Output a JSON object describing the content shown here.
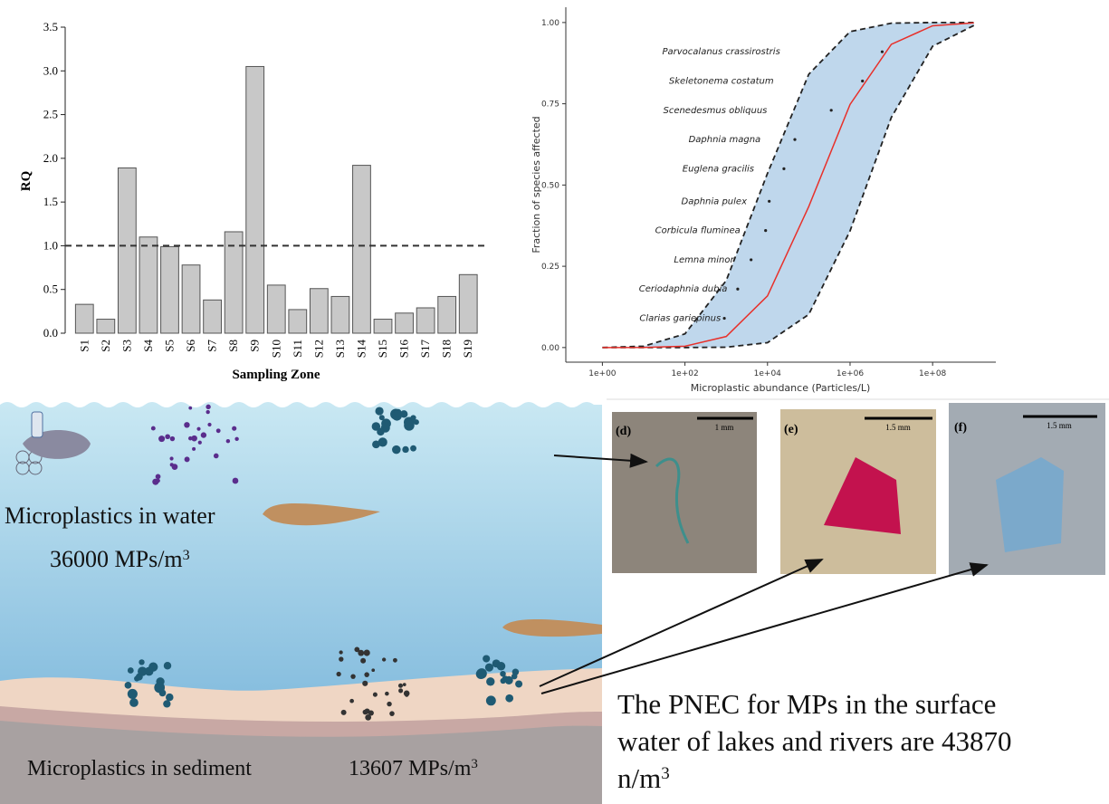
{
  "chart_data": [
    {
      "type": "bar",
      "ylabel": "RQ",
      "xlabel": "Sampling Zone",
      "categories": [
        "S1",
        "S2",
        "S3",
        "S4",
        "S5",
        "S6",
        "S7",
        "S8",
        "S9",
        "S10",
        "S11",
        "S12",
        "S13",
        "S14",
        "S15",
        "S16",
        "S17",
        "S18",
        "S19"
      ],
      "values": [
        0.33,
        0.16,
        1.89,
        1.1,
        0.99,
        0.78,
        0.38,
        1.16,
        3.05,
        0.55,
        0.27,
        0.51,
        0.42,
        1.92,
        0.16,
        0.23,
        0.29,
        0.42,
        0.67
      ],
      "color": "#c8c8c8",
      "reference_line": 1,
      "ylim": [
        0,
        3.5
      ],
      "yticks": [
        {
          "value": 0,
          "label": "0.0"
        },
        {
          "value": 0.5,
          "label": "0.5"
        },
        {
          "value": 1,
          "label": "1.0"
        },
        {
          "value": 1.5,
          "label": "1.5"
        },
        {
          "value": 2,
          "label": "2.0"
        },
        {
          "value": 2.5,
          "label": "2.5"
        },
        {
          "value": 3,
          "label": "3.0"
        },
        {
          "value": 3.5,
          "label": "3.5"
        }
      ]
    },
    {
      "type": "line",
      "xlabel": "Microplastic abundance (Particles/L)",
      "ylabel": "Fraction of species affected",
      "log_x": true,
      "xlim": [
        0.13,
        3400000000
      ],
      "ylim": [
        -0.045,
        1.047
      ],
      "xticks": [
        {
          "value": 1,
          "label": "1e+00"
        },
        {
          "value": 100,
          "label": "1e+02"
        },
        {
          "value": 10000,
          "label": "1e+04"
        },
        {
          "value": 1000000,
          "label": "1e+06"
        },
        {
          "value": 100000000,
          "label": "1e+08"
        }
      ],
      "yticks": [
        {
          "value": 0,
          "label": "0.00"
        },
        {
          "value": 0.25,
          "label": "0.25"
        },
        {
          "value": 0.5,
          "label": "0.50"
        },
        {
          "value": 0.75,
          "label": "0.75"
        },
        {
          "value": 1,
          "label": "1.00"
        }
      ],
      "x": [
        1,
        10,
        100,
        1000,
        10000,
        100000,
        1000000,
        10000000,
        100000000,
        1000000000
      ],
      "band_color": "#a9c9e6",
      "series": [
        {
          "color": "#222222",
          "dashed": true,
          "values": [
            0.0002,
            0.004,
            0.042,
            0.206,
            0.536,
            0.841,
            0.972,
            0.998,
            1,
            1
          ]
        },
        {
          "color": "#222222",
          "dashed": true,
          "values": [
            0,
            0,
            0,
            0.001,
            0.015,
            0.102,
            0.359,
            0.708,
            0.927,
            0.991
          ]
        },
        {
          "color": "#e8302a",
          "dashed": false,
          "values": [
            0,
            0.0002,
            0.004,
            0.034,
            0.159,
            0.434,
            0.748,
            0.933,
            0.99,
            0.999
          ]
        }
      ],
      "points": {
        "labels": [
          "Clarias gariepinus",
          "Ceriodaphnia dubia",
          "Lemna minor",
          "Corbicula fluminea",
          "Daphnia pulex",
          "Euglena gracilis",
          "Daphnia magna",
          "Scenedesmus obliquus",
          "Skeletonema costatum",
          "Parvocalanus crassirostris"
        ],
        "x": [
          900,
          1900,
          4000,
          9000,
          11000,
          25000,
          46000,
          350000,
          2000000,
          6000000
        ],
        "values": [
          0.09,
          0.18,
          0.27,
          0.36,
          0.45,
          0.55,
          0.64,
          0.73,
          0.82,
          0.91
        ]
      }
    }
  ],
  "illustration": {
    "water_label": "Microplastics in water",
    "water_value": "36000 MPs/m",
    "sediment_label": "Microplastics in sediment",
    "sediment_value": "13607 MPs/m"
  },
  "superscript": "3",
  "micrographs": [
    {
      "label": "(d)",
      "scale": "1 mm"
    },
    {
      "label": "(e)",
      "scale": "1.5 mm"
    },
    {
      "label": "(f)",
      "scale": "1.5 mm"
    }
  ],
  "pnec_text": [
    "The PNEC for MPs in the surface",
    "water of lakes and rivers are 43870",
    "n/m"
  ]
}
